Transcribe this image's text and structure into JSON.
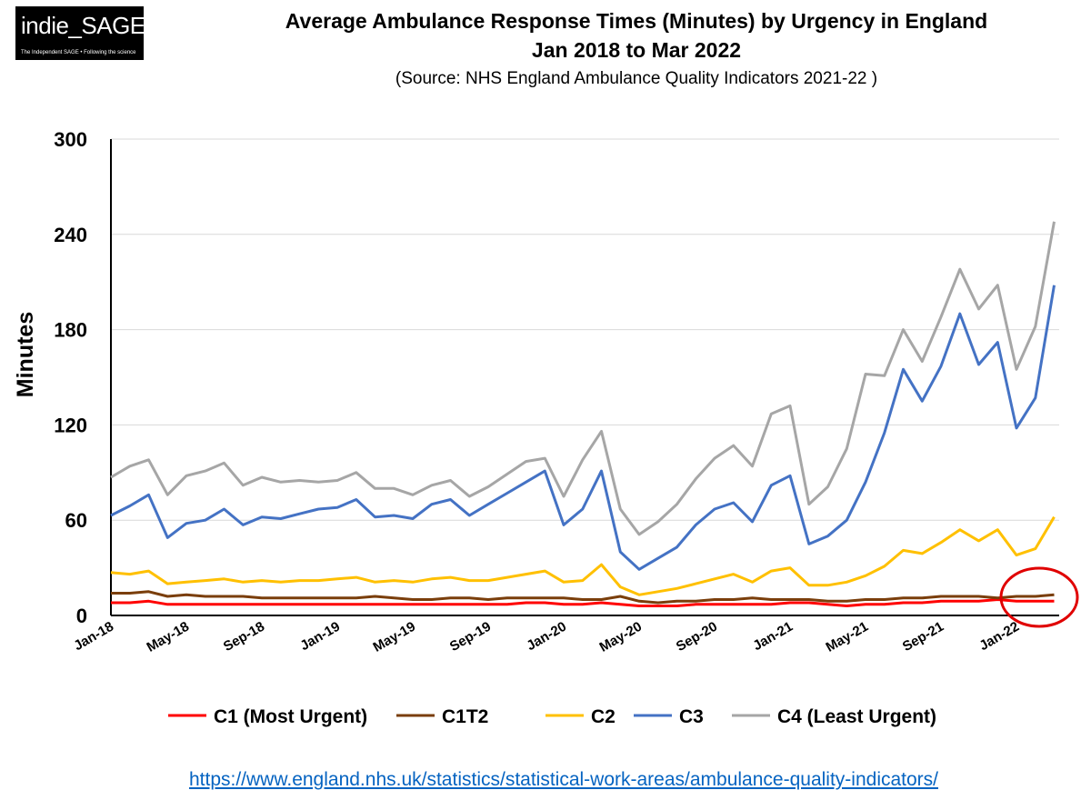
{
  "logo": {
    "name": "indie_SAGE",
    "tagline": "The Independent SAGE • Following the science"
  },
  "header": {
    "title_line1": "Average Ambulance Response Times (Minutes) by Urgency in England",
    "title_line2": "Jan 2018 to Mar 2022",
    "subtitle": "(Source: NHS England Ambulance Quality Indicators 2021-22 )"
  },
  "chart_data": {
    "type": "line",
    "title": "Average Ambulance Response Times (Minutes) by Urgency in England",
    "subtitle": "Jan 2018 to Mar 2022",
    "xlabel": "",
    "ylabel": "Minutes",
    "ylim": [
      0,
      300
    ],
    "yticks": [
      0,
      60,
      120,
      180,
      240,
      300
    ],
    "grid": "horizontal",
    "legend_position": "bottom",
    "x_tick_labels": [
      "Jan-18",
      "May-18",
      "Sep-18",
      "Jan-19",
      "May-19",
      "Sep-19",
      "Jan-20",
      "May-20",
      "Sep-20",
      "Jan-21",
      "May-21",
      "Sep-21",
      "Jan-22"
    ],
    "x_tick_every": 4,
    "categories": [
      "Jan-18",
      "Feb-18",
      "Mar-18",
      "Apr-18",
      "May-18",
      "Jun-18",
      "Jul-18",
      "Aug-18",
      "Sep-18",
      "Oct-18",
      "Nov-18",
      "Dec-18",
      "Jan-19",
      "Feb-19",
      "Mar-19",
      "Apr-19",
      "May-19",
      "Jun-19",
      "Jul-19",
      "Aug-19",
      "Sep-19",
      "Oct-19",
      "Nov-19",
      "Dec-19",
      "Jan-20",
      "Feb-20",
      "Mar-20",
      "Apr-20",
      "May-20",
      "Jun-20",
      "Jul-20",
      "Aug-20",
      "Sep-20",
      "Oct-20",
      "Nov-20",
      "Dec-20",
      "Jan-21",
      "Feb-21",
      "Mar-21",
      "Apr-21",
      "May-21",
      "Jun-21",
      "Jul-21",
      "Aug-21",
      "Sep-21",
      "Oct-21",
      "Nov-21",
      "Dec-21",
      "Jan-22",
      "Feb-22",
      "Mar-22"
    ],
    "series": [
      {
        "name": "C1 (Most Urgent)",
        "color": "#ff0000",
        "values": [
          8,
          8,
          9,
          7,
          7,
          7,
          7,
          7,
          7,
          7,
          7,
          7,
          7,
          7,
          7,
          7,
          7,
          7,
          7,
          7,
          7,
          7,
          8,
          8,
          7,
          7,
          8,
          7,
          6,
          6,
          6,
          7,
          7,
          7,
          7,
          7,
          8,
          8,
          7,
          6,
          7,
          7,
          8,
          8,
          9,
          9,
          9,
          10,
          9,
          9,
          9
        ]
      },
      {
        "name": "C1T2",
        "color": "#7a3e0b",
        "values": [
          14,
          14,
          15,
          12,
          13,
          12,
          12,
          12,
          11,
          11,
          11,
          11,
          11,
          11,
          12,
          11,
          10,
          10,
          11,
          11,
          10,
          11,
          11,
          11,
          11,
          10,
          10,
          12,
          9,
          8,
          9,
          9,
          10,
          10,
          11,
          10,
          10,
          10,
          9,
          9,
          10,
          10,
          11,
          11,
          12,
          12,
          12,
          11,
          12,
          12,
          13
        ]
      },
      {
        "name": "C2",
        "color": "#ffc000",
        "values": [
          27,
          26,
          28,
          20,
          21,
          22,
          23,
          21,
          22,
          21,
          22,
          22,
          23,
          24,
          21,
          22,
          21,
          23,
          24,
          22,
          22,
          24,
          26,
          28,
          21,
          22,
          32,
          18,
          13,
          15,
          17,
          20,
          23,
          26,
          21,
          28,
          30,
          19,
          19,
          21,
          25,
          31,
          41,
          39,
          46,
          54,
          47,
          54,
          38,
          42,
          62
        ]
      },
      {
        "name": "C3",
        "color": "#4472c4",
        "values": [
          63,
          69,
          76,
          49,
          58,
          60,
          67,
          57,
          62,
          61,
          64,
          67,
          68,
          73,
          62,
          63,
          61,
          70,
          73,
          63,
          70,
          77,
          84,
          91,
          57,
          67,
          91,
          40,
          29,
          36,
          43,
          57,
          67,
          71,
          59,
          82,
          88,
          45,
          50,
          60,
          84,
          115,
          155,
          135,
          157,
          190,
          158,
          172,
          118,
          137,
          208
        ]
      },
      {
        "name": "C4 (Least Urgent)",
        "color": "#a6a6a6",
        "values": [
          87,
          94,
          98,
          76,
          88,
          91,
          96,
          82,
          87,
          84,
          85,
          84,
          85,
          90,
          80,
          80,
          76,
          82,
          85,
          75,
          81,
          89,
          97,
          99,
          75,
          98,
          116,
          67,
          51,
          59,
          70,
          86,
          99,
          107,
          94,
          127,
          132,
          70,
          81,
          105,
          152,
          151,
          180,
          160,
          188,
          218,
          193,
          208,
          155,
          182,
          248
        ]
      }
    ]
  },
  "source_url": "https://www.england.nhs.uk/statistics/statistical-work-areas/ambulance-quality-indicators/",
  "annotation": {
    "type": "circle",
    "color": "#e00000",
    "highlights": "Jan-22 to Mar-22, C1 and C1T2"
  }
}
